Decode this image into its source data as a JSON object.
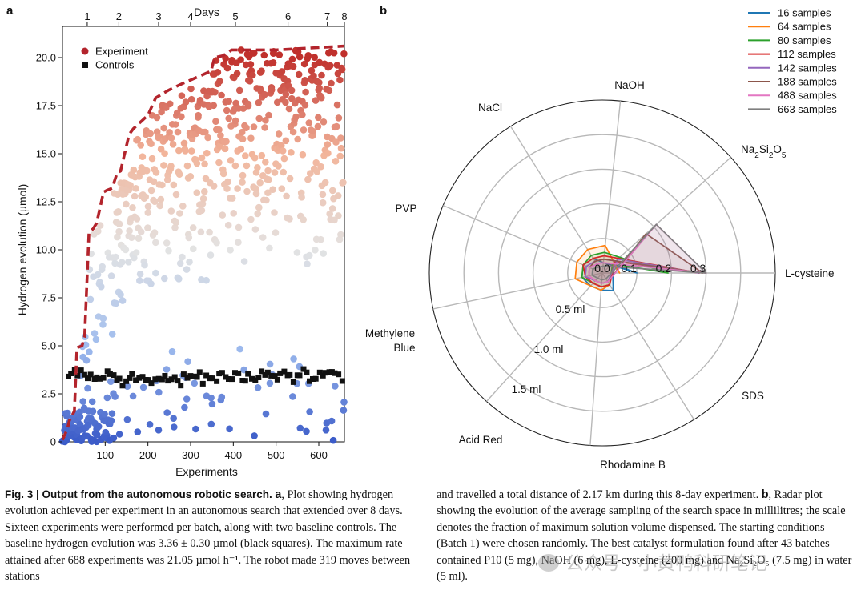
{
  "panel_a": {
    "label": "a",
    "chart_data": {
      "type": "scatter",
      "xlabel": "Experiments",
      "ylabel": "Hydrogen evolution (µmol)",
      "top_axis_label": "Days",
      "xlim": [
        0,
        660
      ],
      "ylim": [
        0,
        21
      ],
      "x_ticks": [
        {
          "v": 100,
          "t": "100"
        },
        {
          "v": 200,
          "t": "200"
        },
        {
          "v": 300,
          "t": "300"
        },
        {
          "v": 400,
          "t": "400"
        },
        {
          "v": 500,
          "t": "500"
        },
        {
          "v": 600,
          "t": "600"
        }
      ],
      "y_ticks": [
        {
          "v": 0,
          "t": "0"
        },
        {
          "v": 2.5,
          "t": "2.5"
        },
        {
          "v": 5,
          "t": "5.0"
        },
        {
          "v": 7.5,
          "t": "7.5"
        },
        {
          "v": 10,
          "t": "10.0"
        },
        {
          "v": 12.5,
          "t": "12.5"
        },
        {
          "v": 15,
          "t": "15.0"
        },
        {
          "v": 17.5,
          "t": "17.5"
        },
        {
          "v": 20,
          "t": "20.0"
        }
      ],
      "day_ticks": [
        {
          "v": 58,
          "t": "1"
        },
        {
          "v": 132,
          "t": "2"
        },
        {
          "v": 225,
          "t": "3"
        },
        {
          "v": 300,
          "t": "4"
        },
        {
          "v": 405,
          "t": "5"
        },
        {
          "v": 528,
          "t": "6"
        },
        {
          "v": 620,
          "t": "7"
        },
        {
          "v": 660,
          "t": "8"
        }
      ],
      "legend": [
        {
          "name": "Experiment",
          "marker": "circle",
          "color": "#b3242c"
        },
        {
          "name": "Controls",
          "marker": "square",
          "color": "#111111"
        }
      ],
      "best_so_far": {
        "x": [
          0,
          12,
          16,
          28,
          34,
          46,
          52,
          62,
          72,
          80,
          96,
          104,
          116,
          128,
          136,
          156,
          166,
          200,
          218,
          248,
          276,
          348,
          356,
          376,
          396,
          500,
          660
        ],
        "y": [
          0.1,
          0.7,
          1.1,
          1.6,
          4.9,
          5.0,
          5.5,
          10.9,
          11.1,
          11.4,
          13.0,
          13.1,
          13.2,
          14.0,
          14.1,
          16.0,
          16.3,
          17.0,
          17.9,
          18.3,
          18.6,
          19.3,
          20.0,
          20.1,
          20.4,
          20.4,
          20.6
        ]
      },
      "controls": {
        "x_range": [
          0,
          660
        ],
        "mean": 3.36,
        "sd": 0.3,
        "count": 86
      },
      "experiments": {
        "count": 688,
        "max_value": 21.05,
        "color_scale": [
          "#3b5bc8",
          "#9fbcee",
          "#e3e3e3",
          "#f2b59b",
          "#c0302c"
        ]
      }
    }
  },
  "panel_b": {
    "label": "b",
    "chart_data": {
      "type": "radar",
      "axes": [
        "L-cysteine",
        "NaOH",
        "NaCl",
        "PVP",
        "Methylene Blue",
        "Acid Red",
        "Rhodamine B",
        "SDS",
        "Na2Si2O5"
      ],
      "axis_angles_deg": [
        0,
        84,
        122,
        157,
        192,
        228,
        266,
        302,
        42
      ],
      "ring_values": [
        0.1,
        0.2,
        0.3
      ],
      "ring_labels": [
        "0.1",
        "0.2",
        "0.3"
      ],
      "center_label": "0.0",
      "volume_labels": [
        "0.5 ml",
        "1.0 ml",
        "1.5 ml"
      ],
      "max_value": 0.5,
      "series": [
        {
          "name": "16 samples",
          "color": "#1f77b4",
          "values": [
            0.1,
            0.03,
            0.05,
            0.06,
            0.06,
            0.05,
            0.05,
            0.06,
            0.04
          ]
        },
        {
          "name": "64 samples",
          "color": "#ff7f0e",
          "values": [
            0.05,
            0.08,
            0.08,
            0.08,
            0.08,
            0.05,
            0.05,
            0.04,
            0.04
          ]
        },
        {
          "name": "80 samples",
          "color": "#2ca02c",
          "values": [
            0.19,
            0.06,
            0.06,
            0.06,
            0.06,
            0.04,
            0.04,
            0.04,
            0.04
          ]
        },
        {
          "name": "112 samples",
          "color": "#d62728",
          "values": [
            0.28,
            0.05,
            0.05,
            0.06,
            0.05,
            0.04,
            0.04,
            0.04,
            0.05
          ]
        },
        {
          "name": "142 samples",
          "color": "#9467bd",
          "values": [
            0.28,
            0.04,
            0.04,
            0.05,
            0.05,
            0.03,
            0.03,
            0.03,
            0.06
          ]
        },
        {
          "name": "188 samples",
          "color": "#8c564b",
          "values": [
            0.29,
            0.04,
            0.04,
            0.04,
            0.04,
            0.03,
            0.03,
            0.03,
            0.17
          ]
        },
        {
          "name": "488 samples",
          "color": "#e377c2",
          "values": [
            0.3,
            0.03,
            0.03,
            0.04,
            0.04,
            0.03,
            0.03,
            0.03,
            0.21
          ]
        },
        {
          "name": "663 samples",
          "color": "#7f7f7f",
          "values": [
            0.3,
            0.02,
            0.02,
            0.03,
            0.03,
            0.02,
            0.02,
            0.02,
            0.21
          ]
        }
      ]
    }
  },
  "caption": {
    "left": {
      "title": "Fig. 3 | Output from the autonomous robotic search.",
      "a_label": "a",
      "a_text": ", Plot showing hydrogen evolution achieved per experiment in an autonomous search that extended over 8 days. Sixteen experiments were performed per batch, along with two baseline controls. The baseline hydrogen evolution was 3.36 ± 0.30 µmol (black squares). The maximum rate attained after 688 experiments was 21.05 µmol h⁻¹. The robot made 319 moves between stations"
    },
    "right": {
      "text1": "and travelled a total distance of 2.17 km during this 8-day experiment.",
      "b_label": "b",
      "text2": ", Radar plot showing the evolution of the average sampling of the search space in millilitres; the scale denotes the fraction of maximum solution volume dispensed. The starting conditions (Batch 1) were chosen randomly. The best catalyst formulation found after 43 batches contained P10 (5 mg), NaOH (6 mg), L-cysteine (200 mg) and Na₂Si₂O₅ (7.5 mg) in water (5 ml)."
    }
  },
  "watermark": "公众号 · 小黄鸭科研笔记"
}
